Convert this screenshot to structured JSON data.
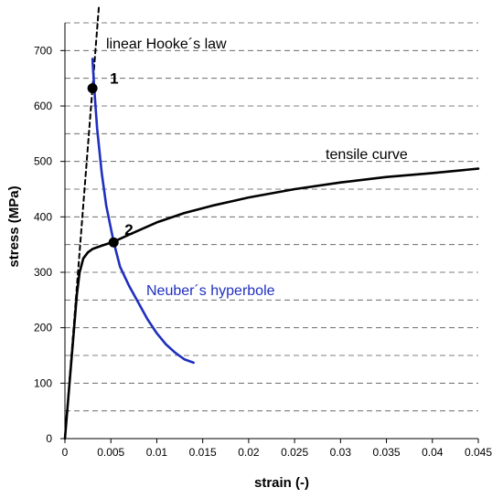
{
  "chart_data": {
    "type": "line",
    "xlabel": "strain (-)",
    "ylabel": "stress (MPa)",
    "xlim": [
      0,
      0.045
    ],
    "ylim": [
      0,
      750
    ],
    "xticks": [
      "0",
      "0.005",
      "0.01",
      "0.015",
      "0.02",
      "0.025",
      "0.03",
      "0.035",
      "0.04",
      "0.045"
    ],
    "xtick_values": [
      0,
      0.005,
      0.01,
      0.015,
      0.02,
      0.025,
      0.03,
      0.035,
      0.04,
      0.045
    ],
    "yticks": [
      "0",
      "100",
      "200",
      "300",
      "400",
      "500",
      "600",
      "700"
    ],
    "ytick_values": [
      0,
      100,
      200,
      300,
      400,
      500,
      600,
      700
    ],
    "grid": "horizontal dashed every 50",
    "series": [
      {
        "name": "linear Hooke´s law",
        "color": "#000000",
        "style": "dashed",
        "x": [
          0,
          0.0037
        ],
        "y": [
          0,
          780
        ]
      },
      {
        "name": "tensile curve",
        "color": "#000000",
        "style": "solid",
        "x": [
          0,
          0.0005,
          0.001,
          0.0013,
          0.0016,
          0.002,
          0.0025,
          0.003,
          0.004,
          0.0053,
          0.007,
          0.01,
          0.013,
          0.016,
          0.02,
          0.025,
          0.03,
          0.035,
          0.04,
          0.045
        ],
        "y": [
          0,
          100,
          200,
          260,
          300,
          325,
          336,
          342,
          348,
          355,
          368,
          390,
          407,
          420,
          435,
          450,
          462,
          472,
          479,
          487
        ]
      },
      {
        "name": "Neuber´s hyperbole",
        "color": "#1f2fbf",
        "style": "solid",
        "x": [
          0.003,
          0.0032,
          0.0035,
          0.004,
          0.0045,
          0.0053,
          0.006,
          0.007,
          0.008,
          0.009,
          0.01,
          0.011,
          0.012,
          0.013,
          0.014
        ],
        "y": [
          685,
          630,
          560,
          480,
          420,
          355,
          310,
          275,
          245,
          215,
          190,
          170,
          155,
          143,
          137
        ]
      }
    ],
    "points": [
      {
        "label": "1",
        "x": 0.003,
        "y": 632
      },
      {
        "label": "2",
        "x": 0.0053,
        "y": 354
      }
    ],
    "annotations": {
      "hooke": "linear Hooke´s law",
      "tensile": "tensile curve",
      "neuber": "Neuber´s hyperbole"
    }
  }
}
